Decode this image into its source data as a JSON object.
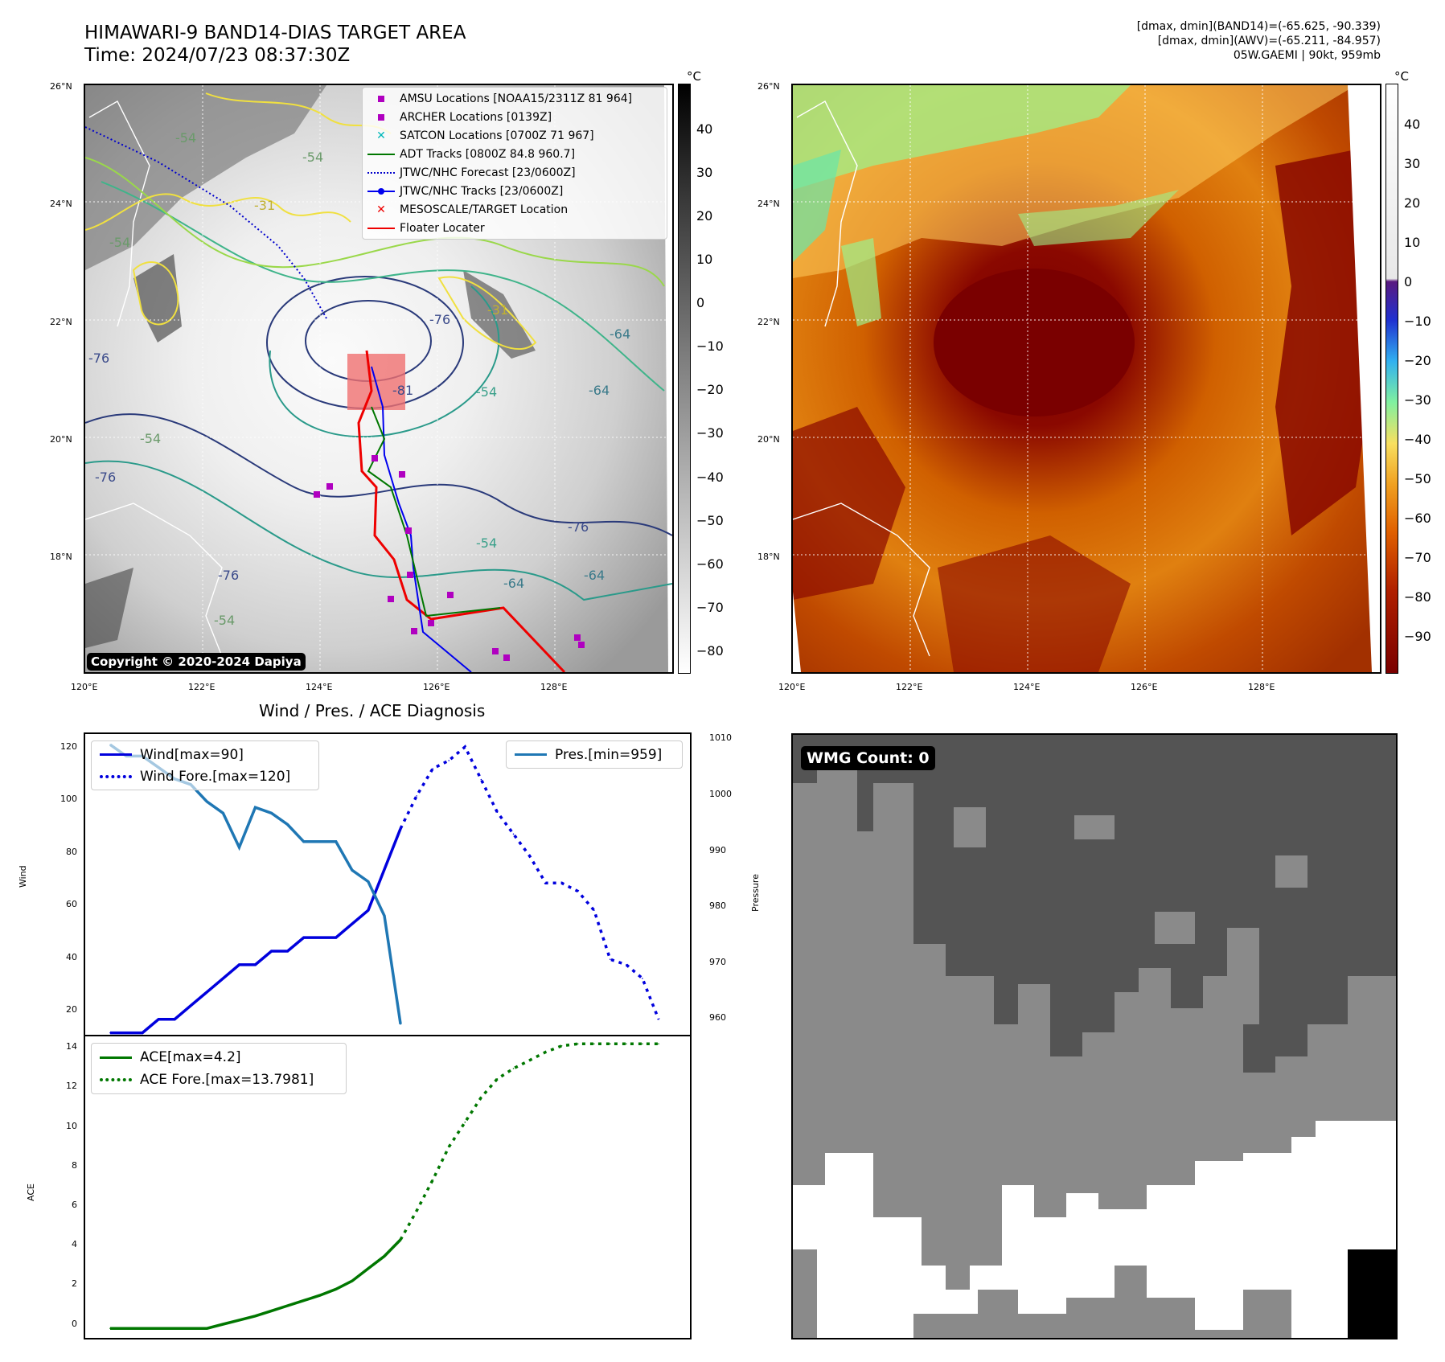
{
  "header": {
    "title_line1": "HIMAWARI-9 BAND14-DIAS TARGET AREA",
    "title_line2": "Time: 2024/07/23 08:37:30Z",
    "info_line1": "[dmax, dmin](BAND14)=(-65.625, -90.339)",
    "info_line2": "[dmax, dmin](AWV)=(-65.211, -84.957)",
    "info_line3": "05W.GAEMI | 90kt, 959mb"
  },
  "map_axes": {
    "lat_ticks": [
      "26°N",
      "24°N",
      "22°N",
      "20°N",
      "18°N"
    ],
    "lon_ticks": [
      "120°E",
      "122°E",
      "124°E",
      "126°E",
      "128°E"
    ]
  },
  "ir_map": {
    "legend": [
      {
        "label": "AMSU Locations [NOAA15/2311Z 81 964]",
        "color": "#b000c0",
        "symbol": "square"
      },
      {
        "label": "ARCHER Locations [0139Z]",
        "color": "#b000c0",
        "symbol": "square"
      },
      {
        "label": "SATCON Locations [0700Z 71 967]",
        "color": "#00b8b8",
        "symbol": "x"
      },
      {
        "label": "ADT Tracks [0800Z 84.8 960.7]",
        "color": "#007700",
        "symbol": "line"
      },
      {
        "label": "JTWC/NHC Forecast [23/0600Z]",
        "color": "#0000cc",
        "symbol": "dotted"
      },
      {
        "label": "JTWC/NHC Tracks [23/0600Z]",
        "color": "#0000ee",
        "symbol": "dotline"
      },
      {
        "label": "MESOSCALE/TARGET Location",
        "color": "#ee0000",
        "symbol": "x"
      },
      {
        "label": "Floater Locater",
        "color": "#ee0000",
        "symbol": "line"
      }
    ],
    "contour_labels": [
      "-54",
      "-54",
      "-54",
      "-31",
      "-31",
      "-76",
      "-76",
      "-76",
      "-64",
      "-64",
      "-81",
      "-54",
      "-76",
      "-54",
      "-54",
      "-64",
      "-76",
      "-64",
      "-54"
    ],
    "copyright": "Copyright © 2020-2024 Dapiya",
    "colorbar": {
      "unit": "°C",
      "ticks": [
        "40",
        "30",
        "20",
        "10",
        "0",
        "−10",
        "−20",
        "−30",
        "−40",
        "−50",
        "−60",
        "−70",
        "−80"
      ]
    }
  },
  "color_map": {
    "colorbar": {
      "unit": "°C",
      "ticks": [
        "40",
        "30",
        "20",
        "10",
        "0",
        "−10",
        "−20",
        "−30",
        "−40",
        "−50",
        "−60",
        "−70",
        "−80",
        "−90"
      ]
    }
  },
  "diag": {
    "title": "Wind / Pres. / ACE Diagnosis",
    "wind_ylabel": "Wind",
    "pres_ylabel": "Pressure",
    "ace_ylabel": "ACE",
    "wind_ticks": [
      "120",
      "100",
      "80",
      "60",
      "40",
      "20"
    ],
    "pres_ticks": [
      "1010",
      "1000",
      "990",
      "980",
      "970",
      "960"
    ],
    "ace_ticks": [
      "14",
      "12",
      "10",
      "8",
      "6",
      "4",
      "2",
      "0"
    ],
    "legend_wind": [
      {
        "label": "Wind[max=90]",
        "color": "#0000dd",
        "style": "solid"
      },
      {
        "label": "Wind Fore.[max=120]",
        "color": "#0000dd",
        "style": "dotted"
      }
    ],
    "legend_pres": [
      {
        "label": "Pres.[min=959]",
        "color": "#1f77b4",
        "style": "solid"
      }
    ],
    "legend_ace": [
      {
        "label": "ACE[max=4.2]",
        "color": "#007700",
        "style": "solid"
      },
      {
        "label": "ACE Fore.[max=13.7981]",
        "color": "#007700",
        "style": "dotted"
      }
    ]
  },
  "wmg": {
    "label": "WMG Count: 0"
  },
  "chart_data": [
    {
      "type": "line",
      "title": "Wind / Pres. / ACE Diagnosis",
      "ylabel": "Wind",
      "ylim": [
        14,
        125
      ],
      "series": [
        {
          "name": "Wind[max=90]",
          "color": "#0000dd",
          "style": "solid",
          "x": [
            0,
            1,
            2,
            3,
            4,
            5,
            6,
            7,
            8,
            9,
            10,
            11,
            12,
            13,
            14,
            15,
            16,
            17,
            18
          ],
          "values": [
            15,
            15,
            15,
            20,
            20,
            25,
            30,
            35,
            40,
            40,
            45,
            45,
            50,
            50,
            50,
            55,
            60,
            75,
            90
          ]
        },
        {
          "name": "Wind Fore.[max=120]",
          "color": "#0000dd",
          "style": "dotted",
          "x": [
            18,
            19,
            20,
            21,
            22,
            23,
            24,
            25,
            26,
            27,
            28,
            29,
            30,
            31,
            32,
            33,
            34
          ],
          "values": [
            90,
            102,
            112,
            115,
            120,
            108,
            96,
            88,
            80,
            70,
            70,
            67,
            60,
            42,
            40,
            35,
            20
          ]
        }
      ]
    },
    {
      "type": "line",
      "ylabel": "Pressure",
      "ylim": [
        957,
        1010
      ],
      "series": [
        {
          "name": "Pres.[min=959]",
          "color": "#1f77b4",
          "style": "solid",
          "x": [
            0,
            1,
            2,
            3,
            4,
            5,
            6,
            7,
            8,
            9,
            10,
            11,
            12,
            13,
            14,
            15,
            16,
            17,
            18
          ],
          "values": [
            1008,
            1006,
            1006,
            1004,
            1002,
            1001,
            998,
            996,
            990,
            997,
            996,
            994,
            991,
            991,
            991,
            986,
            984,
            978,
            959
          ]
        }
      ]
    },
    {
      "type": "line",
      "ylabel": "ACE",
      "ylim": [
        -0.5,
        14.2
      ],
      "series": [
        {
          "name": "ACE[max=4.2]",
          "color": "#007700",
          "style": "solid",
          "x": [
            0,
            2,
            4,
            6,
            7,
            8,
            9,
            10,
            11,
            12,
            13,
            14,
            15,
            16,
            17,
            18
          ],
          "values": [
            0,
            0,
            0,
            0,
            0.2,
            0.4,
            0.6,
            0.85,
            1.1,
            1.35,
            1.6,
            1.9,
            2.3,
            2.9,
            3.5,
            4.3
          ]
        },
        {
          "name": "ACE Fore.[max=13.7981]",
          "color": "#007700",
          "style": "dotted",
          "x": [
            18,
            19,
            20,
            21,
            22,
            23,
            24,
            25,
            26,
            27,
            28,
            29,
            30,
            31,
            32,
            33,
            34
          ],
          "values": [
            4.3,
            5.7,
            7.2,
            8.8,
            10.0,
            11.2,
            12.1,
            12.6,
            13.0,
            13.4,
            13.7,
            13.8,
            13.8,
            13.8,
            13.8,
            13.8,
            13.8
          ]
        }
      ]
    }
  ]
}
